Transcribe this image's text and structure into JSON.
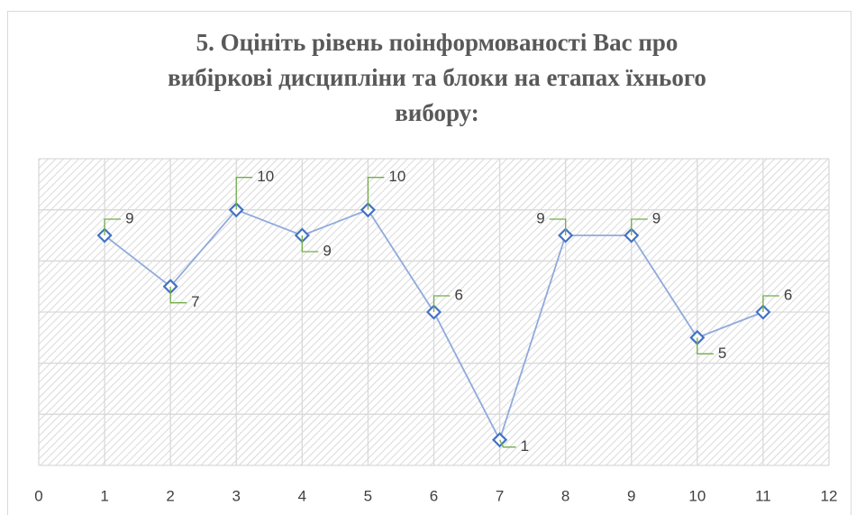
{
  "chart_data": {
    "type": "line",
    "title": [
      "5. Оцініть рівень поінформованості Вас про",
      "вибіркові дисципліни та блоки на етапах їхнього",
      "вибору:"
    ],
    "x": [
      1,
      2,
      3,
      4,
      5,
      6,
      7,
      8,
      9,
      10,
      11
    ],
    "series": [
      {
        "name": "",
        "color": "#8faadc",
        "marker_color": "#4472c4",
        "label_line_color": "#70ad47",
        "values": [
          9,
          7,
          10,
          9,
          10,
          6,
          1,
          9,
          9,
          5,
          6
        ]
      }
    ],
    "xlim": [
      0,
      12
    ],
    "xticks": [
      0,
      1,
      2,
      3,
      4,
      5,
      6,
      7,
      8,
      9,
      10,
      11,
      12
    ],
    "ylim": [
      0,
      12
    ],
    "yticks": [
      0,
      2,
      4,
      6,
      8,
      10,
      12
    ],
    "grid": true
  }
}
